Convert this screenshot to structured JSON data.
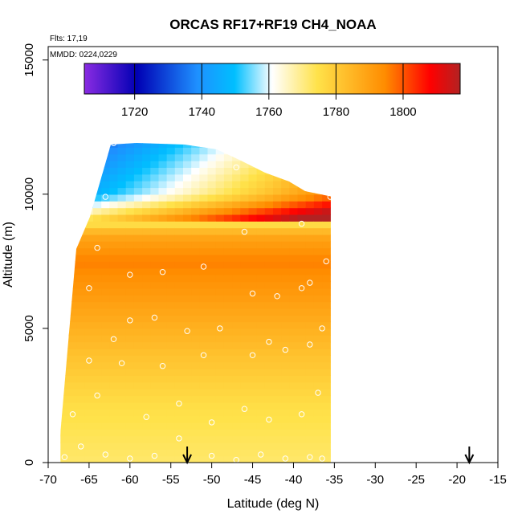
{
  "chart_data": {
    "type": "heatmap",
    "title": "ORCAS RF17+RF19 CH4_NOAA",
    "note_flights": "Flts: 17,19",
    "note_dates": "MMDD: 0224,0229",
    "xlabel": "Latitude (deg N)",
    "ylabel": "Altitude (m)",
    "xlim": [
      -70,
      -15
    ],
    "ylim": [
      0,
      15500
    ],
    "x_ticks": [
      "-70",
      "-65",
      "-60",
      "-55",
      "-50",
      "-45",
      "-40",
      "-35",
      "-30",
      "-25",
      "-20",
      "-15"
    ],
    "y_ticks": [
      "0",
      "5000",
      "10000",
      "15000"
    ],
    "colorbar": {
      "range": [
        1705,
        1817
      ],
      "ticks": [
        "1720",
        "1740",
        "1760",
        "1780",
        "1800"
      ],
      "tick_values": [
        1720,
        1740,
        1760,
        1780,
        1800
      ],
      "colors": [
        "#8a2be2",
        "#0000b4",
        "#1e90ff",
        "#00bfff",
        "#ffffff",
        "#ffe24a",
        "#ff8c00",
        "#ff0000",
        "#b22222"
      ]
    },
    "field_lat_range": [
      -68.5,
      -35.5
    ],
    "field_profiles": [
      {
        "alt": 0,
        "value": 1772
      },
      {
        "alt": 2000,
        "value": 1775
      },
      {
        "alt": 4000,
        "value": 1782
      },
      {
        "alt": 6000,
        "value": 1790
      },
      {
        "alt": 7500,
        "value": 1796
      },
      {
        "alt": 8500,
        "value": 1788
      },
      {
        "alt": 10000,
        "value": 1740
      },
      {
        "alt": 12000,
        "value": 1725
      }
    ],
    "arrows_lat": [
      -53,
      -18.5
    ],
    "sample_points": [
      {
        "lat": -68,
        "alt": 200
      },
      {
        "lat": -66,
        "alt": 600
      },
      {
        "lat": -63,
        "alt": 300
      },
      {
        "lat": -60,
        "alt": 150
      },
      {
        "lat": -57,
        "alt": 250
      },
      {
        "lat": -54,
        "alt": 900
      },
      {
        "lat": -50,
        "alt": 250
      },
      {
        "lat": -47,
        "alt": 100
      },
      {
        "lat": -44,
        "alt": 300
      },
      {
        "lat": -41,
        "alt": 150
      },
      {
        "lat": -38,
        "alt": 200
      },
      {
        "lat": -36.5,
        "alt": 150
      },
      {
        "lat": -67,
        "alt": 1800
      },
      {
        "lat": -64,
        "alt": 2500
      },
      {
        "lat": -58,
        "alt": 1700
      },
      {
        "lat": -54,
        "alt": 2200
      },
      {
        "lat": -50,
        "alt": 1500
      },
      {
        "lat": -46,
        "alt": 2000
      },
      {
        "lat": -43,
        "alt": 1600
      },
      {
        "lat": -39,
        "alt": 1800
      },
      {
        "lat": -37,
        "alt": 2600
      },
      {
        "lat": -65,
        "alt": 3800
      },
      {
        "lat": -61,
        "alt": 3700
      },
      {
        "lat": -56,
        "alt": 3600
      },
      {
        "lat": -51,
        "alt": 4000
      },
      {
        "lat": -45,
        "alt": 4000
      },
      {
        "lat": -41,
        "alt": 4200
      },
      {
        "lat": -38,
        "alt": 4400
      },
      {
        "lat": -62,
        "alt": 4600
      },
      {
        "lat": -60,
        "alt": 5300
      },
      {
        "lat": -57,
        "alt": 5400
      },
      {
        "lat": -53,
        "alt": 4900
      },
      {
        "lat": -49,
        "alt": 5000
      },
      {
        "lat": -43,
        "alt": 4500
      },
      {
        "lat": -36.5,
        "alt": 5000
      },
      {
        "lat": -65,
        "alt": 6500
      },
      {
        "lat": -60,
        "alt": 7000
      },
      {
        "lat": -56,
        "alt": 7100
      },
      {
        "lat": -51,
        "alt": 7300
      },
      {
        "lat": -45,
        "alt": 6300
      },
      {
        "lat": -42,
        "alt": 6200
      },
      {
        "lat": -39,
        "alt": 6500
      },
      {
        "lat": -38,
        "alt": 6700
      },
      {
        "lat": -36,
        "alt": 7500
      },
      {
        "lat": -64,
        "alt": 8000
      },
      {
        "lat": -46,
        "alt": 8600
      },
      {
        "lat": -39,
        "alt": 8900
      },
      {
        "lat": -63,
        "alt": 9900
      },
      {
        "lat": -35.5,
        "alt": 9900
      },
      {
        "lat": -47,
        "alt": 11000
      },
      {
        "lat": -62,
        "alt": 11900
      },
      {
        "lat": -51,
        "alt": 11900
      }
    ]
  }
}
